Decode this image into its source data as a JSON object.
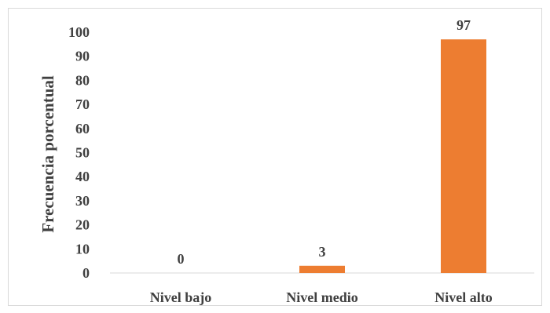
{
  "chart_data": {
    "type": "bar",
    "title": "",
    "xlabel": "",
    "ylabel": "Frecuencia porcentual",
    "categories": [
      "Nivel bajo",
      "Nivel medio",
      "Nivel alto"
    ],
    "values": [
      0,
      3,
      97
    ],
    "data_labels": [
      "0",
      "3",
      "97"
    ],
    "ylim": [
      0,
      100
    ],
    "y_ticks": [
      0,
      10,
      20,
      30,
      40,
      50,
      60,
      70,
      80,
      90,
      100
    ],
    "y_tick_labels": [
      "0",
      "10",
      "20",
      "30",
      "40",
      "50",
      "60",
      "70",
      "80",
      "90",
      "100"
    ],
    "grid": false,
    "legend": "none",
    "bar_color": "#ED7D31",
    "text_color": "#404040",
    "axis_color": "#d9d9d9"
  }
}
